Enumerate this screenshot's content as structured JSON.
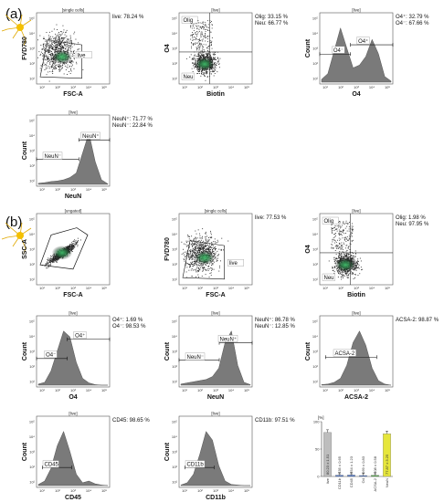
{
  "panel_a_label": "(a)",
  "panel_b_label": "(b)",
  "tick_labels": [
    "10¹",
    "10²",
    "10³",
    "10⁴",
    "10⁵"
  ],
  "plots": [
    {
      "id": "a1",
      "kind": "dot",
      "header": "[single cells]",
      "xlabel": "FSC-A",
      "ylabel": "FVD780",
      "stats": [
        "live: 78.24 %"
      ],
      "gates": [
        "live"
      ]
    },
    {
      "id": "a2",
      "kind": "quad",
      "header": "[live]",
      "xlabel": "Biotin",
      "ylabel": "O4",
      "stats": [
        "Olig: 33.15 %",
        "Neu: 66.77 %"
      ],
      "gates": [
        "Olig",
        "Neu"
      ]
    },
    {
      "id": "a3",
      "kind": "hist",
      "header": "[live]",
      "xlabel": "O4",
      "ylabel": "Count",
      "stats": [
        "O4⁺: 32.79 %",
        "O4⁻: 67.66 %"
      ],
      "gates": [
        "O4⁻",
        "O4⁺"
      ]
    },
    {
      "id": "a4",
      "kind": "hist",
      "header": "[live]",
      "xlabel": "NeuN",
      "ylabel": "Count",
      "stats": [
        "NeuN⁺: 71.77 %",
        "NeuN⁻: 22.84 %"
      ],
      "gates": [
        "NeuN⁻",
        "NeuN⁺"
      ]
    },
    {
      "id": "b1",
      "kind": "dot",
      "header": "[ungated]",
      "xlabel": "FSC-A",
      "ylabel": "SSC-A",
      "stats": [],
      "gates": []
    },
    {
      "id": "b2",
      "kind": "dot",
      "header": "[single cells]",
      "xlabel": "FSC-A",
      "ylabel": "FVD780",
      "stats": [
        "live: 77.53 %"
      ],
      "gates": [
        "live"
      ]
    },
    {
      "id": "b3",
      "kind": "quad",
      "header": "[live]",
      "xlabel": "Biotin",
      "ylabel": "O4",
      "stats": [
        "Olig: 1.98 %",
        "Neu: 97.95 %"
      ],
      "gates": [
        "Olig",
        "Neu"
      ]
    },
    {
      "id": "b4",
      "kind": "hist",
      "header": "[live]",
      "xlabel": "O4",
      "ylabel": "Count",
      "stats": [
        "O4⁺: 1.69 %",
        "O4⁻: 98.53 %"
      ],
      "gates": [
        "O4⁻",
        "O4⁺"
      ]
    },
    {
      "id": "b5",
      "kind": "hist",
      "header": "[live]",
      "xlabel": "NeuN",
      "ylabel": "Count",
      "stats": [
        "NeuN⁺: 86.78 %",
        "NeuN⁻: 12.85 %"
      ],
      "gates": [
        "NeuN⁻",
        "NeuN⁺"
      ]
    },
    {
      "id": "b6",
      "kind": "hist",
      "header": "[live]",
      "xlabel": "ACSA-2",
      "ylabel": "Count",
      "stats": [
        "ACSA-2: 98.87 %"
      ],
      "gates": [
        "ACSA-2"
      ]
    },
    {
      "id": "b7",
      "kind": "hist",
      "header": "[live]",
      "xlabel": "CD45",
      "ylabel": "Count",
      "stats": [
        "CD45: 98.65 %"
      ],
      "gates": [
        "CD45"
      ]
    },
    {
      "id": "b8",
      "kind": "hist",
      "header": "[live]",
      "xlabel": "CD11b",
      "ylabel": "Count",
      "stats": [
        "CD11b: 97.51 %"
      ],
      "gates": [
        "CD11b"
      ]
    }
  ],
  "chart_data": {
    "type": "bar",
    "title": "",
    "ylabel": "[%]",
    "yticks": [
      "100",
      "50",
      "0"
    ],
    "ylim": [
      0,
      100
    ],
    "categories": [
      "live",
      "CD11b",
      "CD45",
      "O4",
      "ACSA-2",
      "NeuN"
    ],
    "values": [
      80.23,
      2.35,
      2.54,
      1.69,
      2.08,
      77.87
    ],
    "bar_labels": [
      "80.23 ± 1.51",
      "2.35 ± 0.65",
      "2.54 ± 1.23",
      "1.69 ± 0.83",
      "2.08 ± 0.58",
      "77.87 ± 3.25"
    ],
    "colors": [
      "#bdbdbd",
      "#4a72c4",
      "#4a72c4",
      "#4a72c4",
      "#52a447",
      "#e6e63c"
    ]
  }
}
